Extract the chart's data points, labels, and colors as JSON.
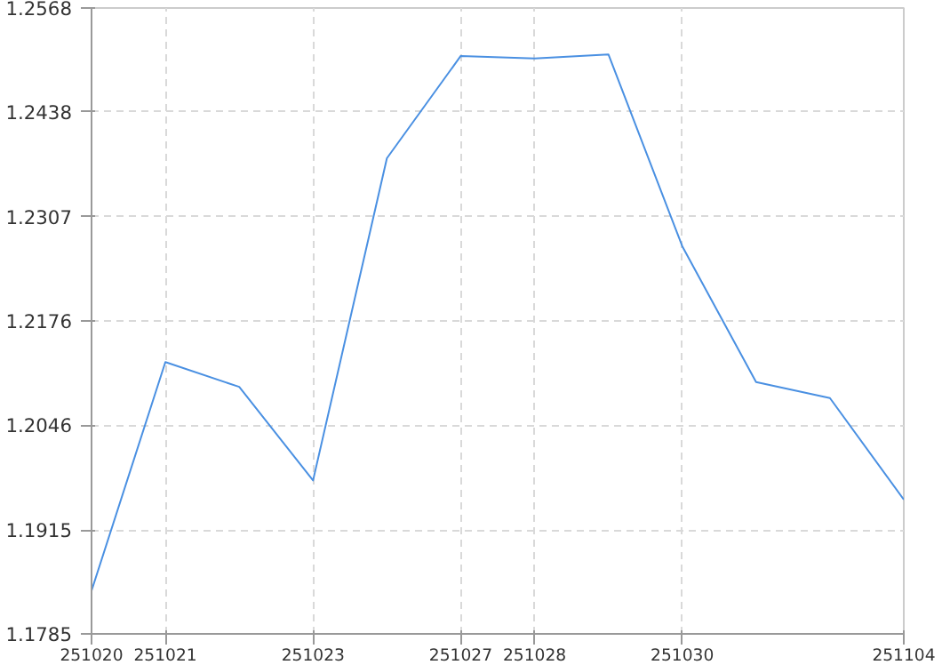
{
  "chart_data": {
    "type": "line",
    "categories": [
      "251020",
      "251021",
      null,
      "251023",
      null,
      "251027",
      "251028",
      null,
      "251030",
      null,
      null,
      "251104"
    ],
    "series": [
      {
        "color": "#4a90e2",
        "values": [
          1.1839,
          1.2125,
          1.2094,
          1.1977,
          1.238,
          1.2508,
          1.2505,
          1.251,
          1.227,
          1.21,
          1.208,
          1.1953
        ]
      }
    ],
    "ylim": [
      1.1785,
      1.2568
    ],
    "yticks": [
      1.1785,
      1.1915,
      1.2046,
      1.2176,
      1.2307,
      1.2438,
      1.2568
    ],
    "grid": true,
    "marker": "none",
    "line_style": "solid"
  }
}
